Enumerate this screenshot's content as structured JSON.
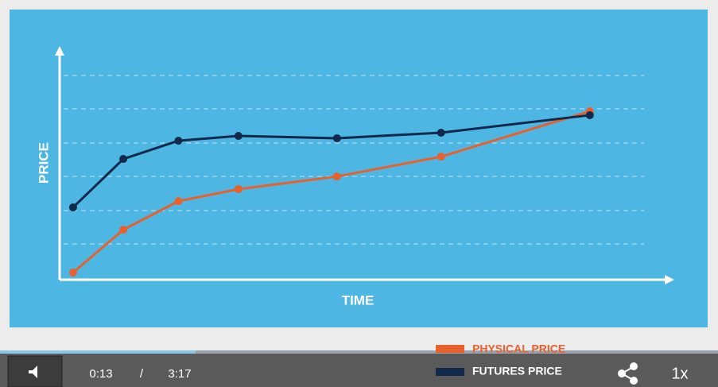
{
  "chart_data": {
    "type": "line",
    "ylabel": "PRICE",
    "xlabel": "TIME",
    "x": [
      2.2,
      10.4,
      19.4,
      29.2,
      45.3,
      62.3,
      86.6
    ],
    "xlim": [
      0,
      100
    ],
    "ylim": [
      0,
      100
    ],
    "series": [
      {
        "name": "PHYSICAL PRICE",
        "color": "#e8602c",
        "values": [
          3.1,
          21.7,
          34.1,
          39.3,
          44.8,
          53.4,
          73.1
        ]
      },
      {
        "name": "FUTURES PRICE",
        "color": "#13294b",
        "values": [
          31.4,
          52.4,
          60.3,
          62.4,
          61.4,
          63.8,
          71.4
        ]
      }
    ]
  },
  "player": {
    "current_time": "0:13",
    "separator": "/",
    "duration": "3:17",
    "speed": "1x"
  }
}
